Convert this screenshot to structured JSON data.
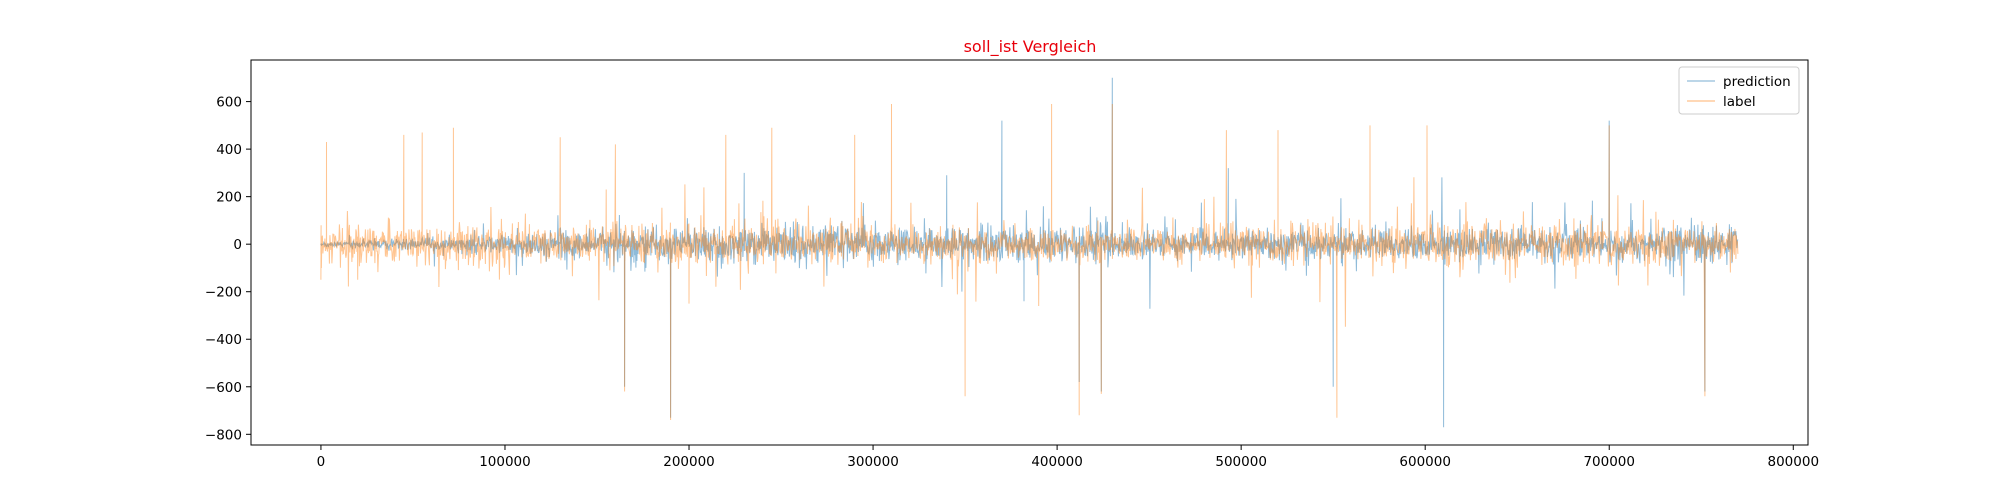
{
  "chart_data": {
    "type": "line",
    "title": "soll_ist Vergleich",
    "title_color": "#e8000b",
    "xlabel": "",
    "ylabel": "",
    "xlim": [
      -38000,
      808000
    ],
    "ylim": [
      -845,
      775
    ],
    "x_ticks": [
      0,
      100000,
      200000,
      300000,
      400000,
      500000,
      600000,
      700000,
      800000
    ],
    "x_tick_labels": [
      "0",
      "100000",
      "200000",
      "300000",
      "400000",
      "500000",
      "600000",
      "700000",
      "800000"
    ],
    "y_ticks": [
      600,
      400,
      200,
      0,
      -200,
      -400,
      -600,
      -800
    ],
    "y_tick_labels": [
      "600",
      "400",
      "200",
      "0",
      "−200",
      "−400",
      "−600",
      "−800"
    ],
    "x_range": [
      0,
      770000
    ],
    "grid": false,
    "legend_position": "top-right",
    "series": [
      {
        "name": "prediction",
        "color": "#1f77b4",
        "values": [
          [
            0,
            0
          ],
          [
            30000,
            -10
          ],
          [
            60000,
            5
          ],
          [
            100000,
            -15
          ],
          [
            130000,
            10
          ],
          [
            165000,
            -600
          ],
          [
            190000,
            -730
          ],
          [
            230000,
            300
          ],
          [
            300000,
            20
          ],
          [
            340000,
            290
          ],
          [
            370000,
            520
          ],
          [
            382000,
            -240
          ],
          [
            400000,
            20
          ],
          [
            412000,
            -580
          ],
          [
            424000,
            -620
          ],
          [
            430000,
            700
          ],
          [
            493000,
            320
          ],
          [
            520000,
            30
          ],
          [
            550000,
            -600
          ],
          [
            600000,
            -40
          ],
          [
            610000,
            -770
          ],
          [
            640000,
            -30
          ],
          [
            700000,
            520
          ],
          [
            752000,
            -620
          ],
          [
            770000,
            0
          ]
        ]
      },
      {
        "name": "label",
        "color": "#ff7f0e",
        "values": [
          [
            0,
            -150
          ],
          [
            3000,
            430
          ],
          [
            20000,
            -150
          ],
          [
            45000,
            460
          ],
          [
            55000,
            470
          ],
          [
            72000,
            490
          ],
          [
            130000,
            450
          ],
          [
            155000,
            230
          ],
          [
            160000,
            420
          ],
          [
            165000,
            -620
          ],
          [
            190000,
            -740
          ],
          [
            200000,
            -250
          ],
          [
            220000,
            460
          ],
          [
            245000,
            490
          ],
          [
            290000,
            460
          ],
          [
            310000,
            590
          ],
          [
            350000,
            -640
          ],
          [
            390000,
            -260
          ],
          [
            397000,
            590
          ],
          [
            412000,
            -720
          ],
          [
            424000,
            -630
          ],
          [
            430000,
            590
          ],
          [
            492000,
            480
          ],
          [
            520000,
            480
          ],
          [
            552000,
            -730
          ],
          [
            570000,
            500
          ],
          [
            601000,
            500
          ],
          [
            700000,
            500
          ],
          [
            752000,
            -640
          ],
          [
            770000,
            0
          ]
        ]
      }
    ]
  }
}
